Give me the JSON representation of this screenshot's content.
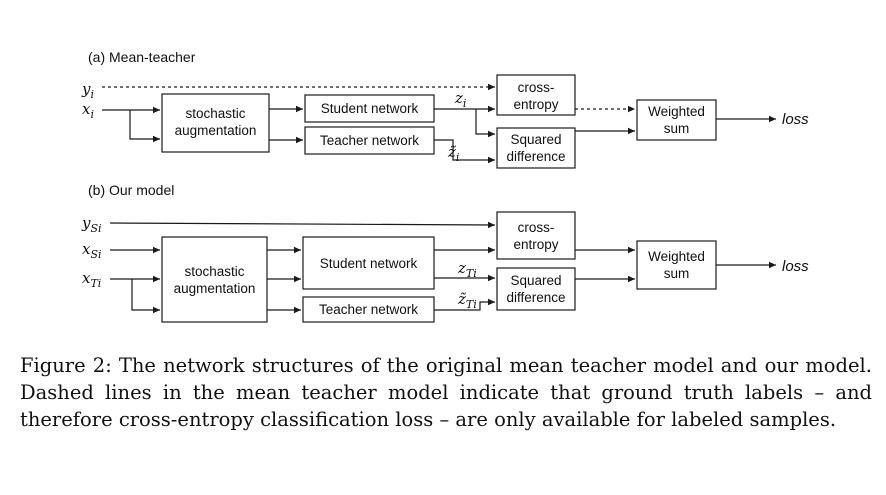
{
  "panel_a": {
    "title": "(a) Mean-teacher",
    "inputs": {
      "y": "y",
      "y_sub": "i",
      "x": "x",
      "x_sub": "i"
    },
    "augmentation": [
      "stochastic",
      "augmentation"
    ],
    "student": "Student network",
    "teacher": "Teacher network",
    "z": "z",
    "z_sub": "i",
    "z_tilde": "z̃",
    "z_tilde_sub": "i",
    "cross_entropy": [
      "cross-",
      "entropy"
    ],
    "squared_difference": [
      "Squared",
      "difference"
    ],
    "weighted_sum": [
      "Weighted",
      "sum"
    ],
    "loss": "loss"
  },
  "panel_b": {
    "title": "(b) Our model",
    "inputs": {
      "y": "y",
      "y_sub": "Si",
      "xs": "x",
      "xs_sub": "Si",
      "xt": "x",
      "xt_sub": "Ti"
    },
    "augmentation": [
      "stochastic",
      "augmentation"
    ],
    "student": "Student network",
    "teacher": "Teacher network",
    "z": "z",
    "z_sub": "Ti",
    "z_tilde": "z̃",
    "z_tilde_sub": "Ti",
    "cross_entropy": [
      "cross-",
      "entropy"
    ],
    "squared_difference": [
      "Squared",
      "difference"
    ],
    "weighted_sum": [
      "Weighted",
      "sum"
    ],
    "loss": "loss"
  },
  "caption": "Figure 2: The network structures of the original mean teacher model and our model. Dashed lines in the mean teacher model indicate that ground truth labels – and therefore cross-entropy classification loss – are only available for labeled samples."
}
